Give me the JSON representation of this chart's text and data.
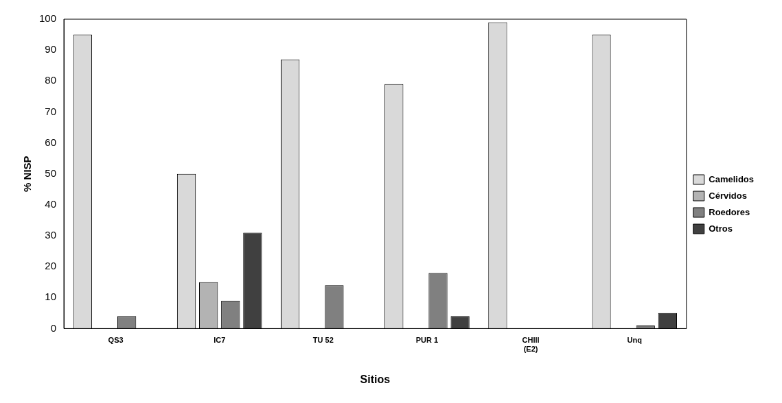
{
  "chart_data": {
    "type": "bar",
    "xlabel": "Sitios",
    "ylabel": "% NISP",
    "categories": [
      "QS3",
      "IC7",
      "TU 52",
      "PUR 1",
      "CHIII\n(E2)",
      "Unq"
    ],
    "series": [
      {
        "name": "Camelidos",
        "color": "#d9d9d9",
        "values": [
          95,
          50,
          87,
          79,
          99,
          95
        ]
      },
      {
        "name": "Cérvidos",
        "color": "#b3b3b3",
        "values": [
          0,
          15,
          0,
          0,
          0,
          0
        ]
      },
      {
        "name": "Roedores",
        "color": "#808080",
        "values": [
          4,
          9,
          14,
          18,
          0,
          1
        ]
      },
      {
        "name": "Otros",
        "color": "#404040",
        "values": [
          0,
          31,
          0,
          4,
          0,
          5
        ]
      }
    ],
    "ylim": [
      0,
      100
    ],
    "yticks": [
      0,
      10,
      20,
      30,
      40,
      50,
      60,
      70,
      80,
      90,
      100
    ],
    "grid": false,
    "legend": "right"
  }
}
